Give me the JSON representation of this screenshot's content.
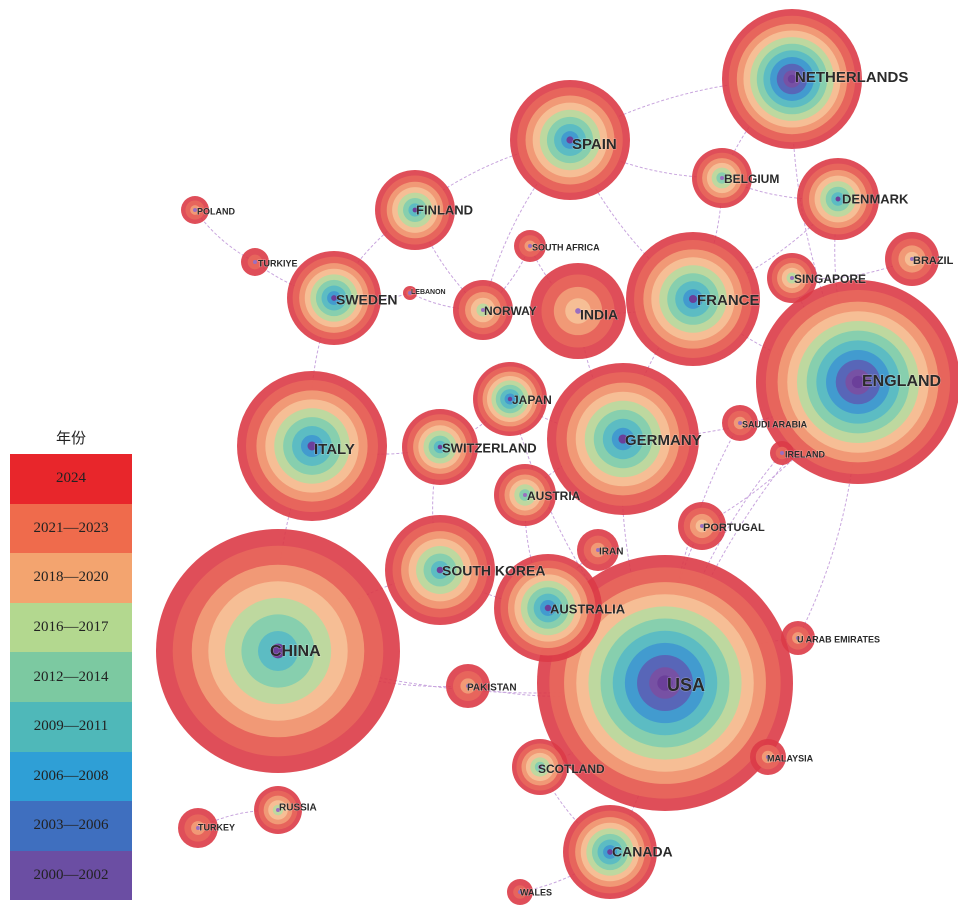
{
  "legend": {
    "title": "年份",
    "bands": [
      {
        "label": "2024",
        "color": "#e8262b"
      },
      {
        "label": "2021—2023",
        "color": "#ef6b4c"
      },
      {
        "label": "2018—2020",
        "color": "#f3a46f"
      },
      {
        "label": "2016—2017",
        "color": "#b3d88f"
      },
      {
        "label": "2012—2014",
        "color": "#7cc9a1"
      },
      {
        "label": "2009—2011",
        "color": "#4fb8b9"
      },
      {
        "label": "2006—2008",
        "color": "#2f9fd6"
      },
      {
        "label": "2003—2006",
        "color": "#3f6fbf"
      },
      {
        "label": "2000—2002",
        "color": "#6b4ea3"
      }
    ]
  },
  "nodes": [
    {
      "label": "NETHERLANDS",
      "id": "netherlands",
      "rings": 9
    },
    {
      "label": "SPAIN",
      "id": "spain",
      "rings": 7
    },
    {
      "label": "BELGIUM",
      "id": "belgium",
      "rings": 5
    },
    {
      "label": "DENMARK",
      "id": "denmark",
      "rings": 6
    },
    {
      "label": "FINLAND",
      "id": "finland",
      "rings": 6
    },
    {
      "label": "POLAND",
      "id": "poland",
      "rings": 2
    },
    {
      "label": "SOUTH AFRICA",
      "id": "south-africa",
      "rings": 2
    },
    {
      "label": "BRAZIL",
      "id": "brazil",
      "rings": 3
    },
    {
      "label": "TURKIYE",
      "id": "turkiye",
      "rings": 1
    },
    {
      "label": "SINGAPORE",
      "id": "singapore",
      "rings": 4
    },
    {
      "label": "SWEDEN",
      "id": "sweden",
      "rings": 7
    },
    {
      "label": "LEBANON",
      "id": "lebanon",
      "rings": 1
    },
    {
      "label": "NORWAY",
      "id": "norway",
      "rings": 4
    },
    {
      "label": "INDIA",
      "id": "india",
      "rings": 3
    },
    {
      "label": "FRANCE",
      "id": "france",
      "rings": 7
    },
    {
      "label": "ENGLAND",
      "id": "england",
      "rings": 9
    },
    {
      "label": "JAPAN",
      "id": "japan",
      "rings": 7
    },
    {
      "label": "ITALY",
      "id": "italy",
      "rings": 7
    },
    {
      "label": "SWITZERLAND",
      "id": "switzerland",
      "rings": 6
    },
    {
      "label": "GERMANY",
      "id": "germany",
      "rings": 7
    },
    {
      "label": "SAUDI ARABIA",
      "id": "saudi-arabia",
      "rings": 2
    },
    {
      "label": "IRELAND",
      "id": "ireland",
      "rings": 1
    },
    {
      "label": "AUSTRIA",
      "id": "austria",
      "rings": 5
    },
    {
      "label": "PORTUGAL",
      "id": "portugal",
      "rings": 3
    },
    {
      "label": "IRAN",
      "id": "iran",
      "rings": 2
    },
    {
      "label": "SOUTH KOREA",
      "id": "south-korea",
      "rings": 6
    },
    {
      "label": "AUSTRALIA",
      "id": "australia",
      "rings": 7
    },
    {
      "label": "CHINA",
      "id": "china",
      "rings": 6
    },
    {
      "label": "U ARAB EMIRATES",
      "id": "u-arab-emirates",
      "rings": 2
    },
    {
      "label": "USA",
      "id": "usa",
      "rings": 9
    },
    {
      "label": "PAKISTAN",
      "id": "pakistan",
      "rings": 2
    },
    {
      "label": "MALAYSIA",
      "id": "malaysia",
      "rings": 2
    },
    {
      "label": "SCOTLAND",
      "id": "scotland",
      "rings": 5
    },
    {
      "label": "RUSSIA",
      "id": "russia",
      "rings": 4
    },
    {
      "label": "TURKEY",
      "id": "turkey",
      "rings": 2
    },
    {
      "label": "CANADA",
      "id": "canada",
      "rings": 7
    },
    {
      "label": "WALES",
      "id": "wales",
      "rings": 1
    }
  ],
  "links": [
    [
      "netherlands",
      "spain"
    ],
    [
      "netherlands",
      "belgium"
    ],
    [
      "spain",
      "belgium"
    ],
    [
      "belgium",
      "denmark"
    ],
    [
      "spain",
      "finland"
    ],
    [
      "spain",
      "france"
    ],
    [
      "spain",
      "norway"
    ],
    [
      "finland",
      "sweden"
    ],
    [
      "finland",
      "norway"
    ],
    [
      "poland",
      "turkiye"
    ],
    [
      "turkiye",
      "sweden"
    ],
    [
      "sweden",
      "lebanon"
    ],
    [
      "lebanon",
      "norway"
    ],
    [
      "norway",
      "south-africa"
    ],
    [
      "south-africa",
      "india"
    ],
    [
      "india",
      "france"
    ],
    [
      "france",
      "belgium"
    ],
    [
      "france",
      "denmark"
    ],
    [
      "france",
      "england"
    ],
    [
      "france",
      "germany"
    ],
    [
      "singapore",
      "brazil"
    ],
    [
      "singapore",
      "england"
    ],
    [
      "denmark",
      "england"
    ],
    [
      "sweden",
      "italy"
    ],
    [
      "italy",
      "switzerland"
    ],
    [
      "switzerland",
      "japan"
    ],
    [
      "switzerland",
      "south-korea"
    ],
    [
      "japan",
      "germany"
    ],
    [
      "germany",
      "england"
    ],
    [
      "germany",
      "usa"
    ],
    [
      "germany",
      "austria"
    ],
    [
      "austria",
      "australia"
    ],
    [
      "saudi-arabia",
      "usa"
    ],
    [
      "ireland",
      "usa"
    ],
    [
      "portugal",
      "usa"
    ],
    [
      "iran",
      "australia"
    ],
    [
      "south-korea",
      "australia"
    ],
    [
      "south-korea",
      "china"
    ],
    [
      "italy",
      "china"
    ],
    [
      "china",
      "pakistan"
    ],
    [
      "pakistan",
      "usa"
    ],
    [
      "australia",
      "usa"
    ],
    [
      "u-arab-emirates",
      "usa"
    ],
    [
      "malaysia",
      "usa"
    ],
    [
      "scotland",
      "usa"
    ],
    [
      "scotland",
      "canada"
    ],
    [
      "canada",
      "usa"
    ],
    [
      "wales",
      "canada"
    ],
    [
      "russia",
      "turkey"
    ],
    [
      "england",
      "usa"
    ],
    [
      "netherlands",
      "england"
    ],
    [
      "india",
      "germany"
    ],
    [
      "japan",
      "usa"
    ],
    [
      "china",
      "usa"
    ],
    [
      "portugal",
      "england"
    ],
    [
      "u-arab-emirates",
      "england"
    ]
  ]
}
